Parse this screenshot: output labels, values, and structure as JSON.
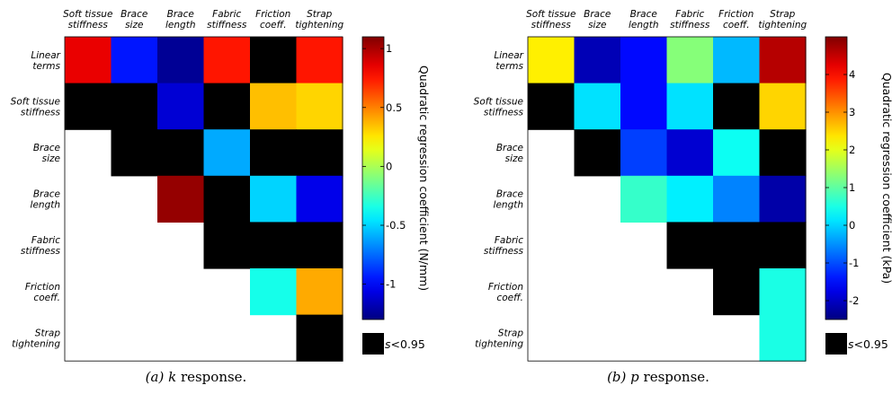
{
  "panels": [
    {
      "key": "a",
      "caption_prefix": "(a) ",
      "caption_var": "k",
      "caption_suffix": " response.",
      "colorbar_label": "Quadratic regression coefficient (N/mm)",
      "colorbar_min": -1.3,
      "colorbar_max": 1.1,
      "colorbar_ticks": [
        {
          "value": 1,
          "label": "1"
        },
        {
          "value": 0.5,
          "label": "0.5"
        },
        {
          "value": 0,
          "label": "0"
        },
        {
          "value": -0.5,
          "label": "-0.5"
        },
        {
          "value": -1,
          "label": "-1"
        }
      ],
      "legend_label": "s<0.95"
    },
    {
      "key": "b",
      "caption_prefix": "(b) ",
      "caption_var": "p",
      "caption_suffix": " response.",
      "colorbar_label": "Quadratic regression coefficient (kPa)",
      "colorbar_min": -2.5,
      "colorbar_max": 5.0,
      "colorbar_ticks": [
        {
          "value": 4,
          "label": "4"
        },
        {
          "value": 3,
          "label": "3"
        },
        {
          "value": 2,
          "label": "2"
        },
        {
          "value": 1,
          "label": "1"
        },
        {
          "value": 0,
          "label": "0"
        },
        {
          "value": -1,
          "label": "-1"
        },
        {
          "value": -2,
          "label": "-2"
        }
      ],
      "legend_label": "s<0.95"
    }
  ],
  "chart_data": [
    {
      "type": "heatmap",
      "title": "",
      "column_labels": [
        [
          "Soft tissue",
          "stiffness"
        ],
        [
          "Brace",
          "size"
        ],
        [
          "Brace",
          "length"
        ],
        [
          "Fabric",
          "stiffness"
        ],
        [
          "Friction",
          "coeff."
        ],
        [
          "Strap",
          "tightening"
        ]
      ],
      "row_labels": [
        [
          "Linear",
          "terms"
        ],
        [
          "Soft tissue",
          "stiffness"
        ],
        [
          "Brace",
          "size"
        ],
        [
          "Brace",
          "length"
        ],
        [
          "Fabric",
          "stiffness"
        ],
        [
          "Friction",
          "coeff."
        ],
        [
          "Strap",
          "tightening"
        ]
      ],
      "colorbar_label": "Quadratic regression coefficient (N/mm)",
      "clim": [
        -1.3,
        1.1
      ],
      "masked_label": "s<0.95",
      "cells": [
        [
          0.85,
          -0.95,
          -1.25,
          0.75,
          "masked",
          0.75
        ],
        [
          "masked",
          "masked",
          -1.1,
          "masked",
          0.35,
          0.3
        ],
        [
          null,
          "masked",
          "masked",
          -0.6,
          "masked",
          "masked"
        ],
        [
          null,
          null,
          1.05,
          "masked",
          -0.5,
          -1.05
        ],
        [
          null,
          null,
          null,
          "masked",
          "masked",
          "masked"
        ],
        [
          null,
          null,
          null,
          null,
          -0.35,
          0.4
        ],
        [
          null,
          null,
          null,
          null,
          null,
          "masked"
        ]
      ]
    },
    {
      "type": "heatmap",
      "title": "",
      "column_labels": [
        [
          "Soft tissue",
          "stiffness"
        ],
        [
          "Brace",
          "size"
        ],
        [
          "Brace",
          "length"
        ],
        [
          "Fabric",
          "stiffness"
        ],
        [
          "Friction",
          "coeff."
        ],
        [
          "Strap",
          "tightening"
        ]
      ],
      "row_labels": [
        [
          "Linear",
          "terms"
        ],
        [
          "Soft tissue",
          "stiffness"
        ],
        [
          "Brace",
          "size"
        ],
        [
          "Brace",
          "length"
        ],
        [
          "Fabric",
          "stiffness"
        ],
        [
          "Friction",
          "coeff."
        ],
        [
          "Strap",
          "tightening"
        ]
      ],
      "colorbar_label": "Quadratic regression coefficient (kPa)",
      "clim": [
        -2.5,
        5.0
      ],
      "masked_label": "s<0.95",
      "cells": [
        [
          2.3,
          -2.1,
          -1.5,
          1.3,
          -0.2,
          4.6
        ],
        [
          "masked",
          0.1,
          -1.5,
          0.1,
          "masked",
          2.5
        ],
        [
          null,
          "masked",
          -1.1,
          -1.9,
          0.4,
          "masked"
        ],
        [
          null,
          null,
          0.7,
          0.2,
          -0.6,
          -2.2
        ],
        [
          null,
          null,
          null,
          "masked",
          "masked",
          "masked"
        ],
        [
          null,
          null,
          null,
          null,
          "masked",
          0.5
        ],
        [
          null,
          null,
          null,
          null,
          null,
          0.5
        ]
      ]
    }
  ]
}
